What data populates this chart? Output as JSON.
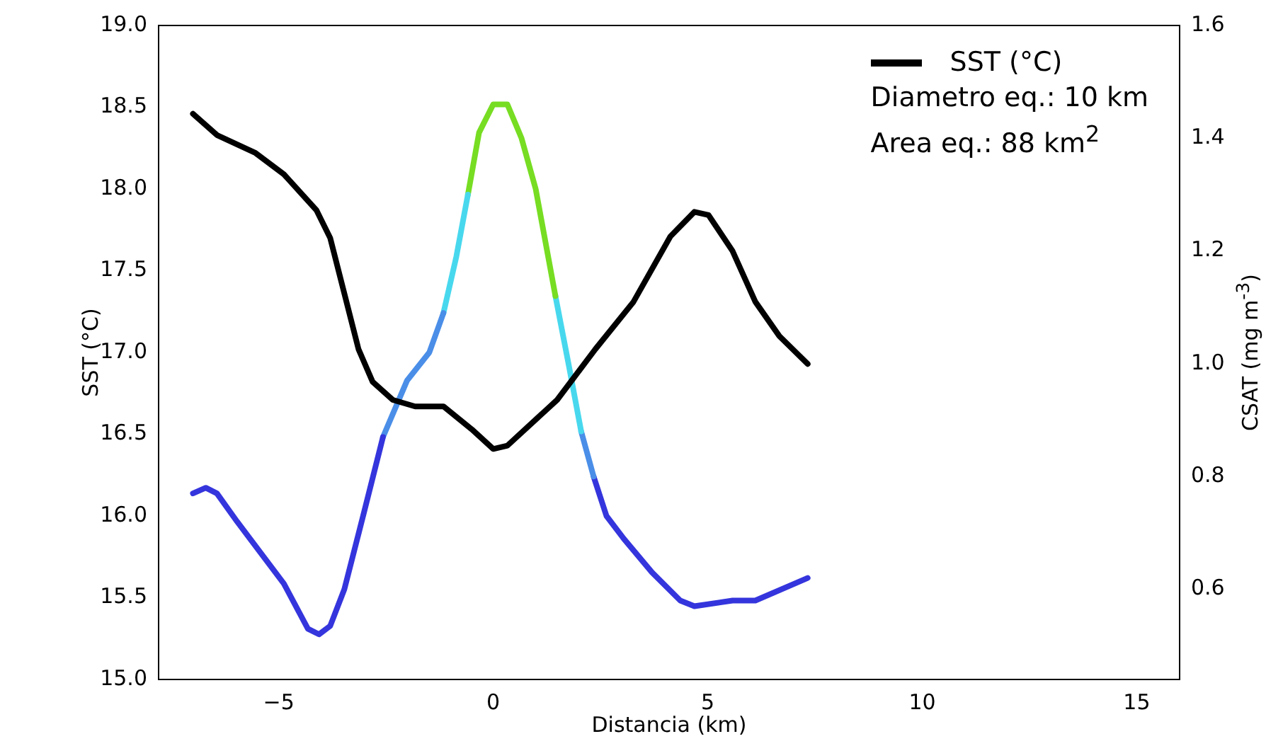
{
  "chart_data": {
    "type": "line",
    "xlabel": "Distancia (km)",
    "ylabel": "SST (°C)",
    "y2label": "CSAT (mg m$^{-3}$)",
    "annotations": [
      "Diametro eq.: 10 km",
      "Area eq.: 88 km$^{2}$"
    ],
    "xlim": [
      -7.8,
      16
    ],
    "xticks": [
      {
        "value": -5,
        "label": "−5"
      },
      0,
      5,
      10,
      15
    ],
    "ylim": [
      15,
      19
    ],
    "yticks": [
      {
        "value": 15,
        "label": "15.0"
      },
      15.5,
      {
        "value": 16,
        "label": "16.0"
      },
      16.5,
      {
        "value": 17,
        "label": "17.0"
      },
      17.5,
      {
        "value": 18,
        "label": "18.0"
      },
      18.5,
      {
        "value": 19,
        "label": "19.0"
      }
    ],
    "y2lim": [
      0.44,
      1.6
    ],
    "y2ticks": [
      0.6,
      0.8,
      {
        "value": 1,
        "label": "1.0"
      },
      1.2,
      1.4,
      1.6
    ],
    "grid": false,
    "legend": "top right",
    "marker": "none",
    "line_style": "solid",
    "series": [
      {
        "name": "SST (°C)",
        "color": "#000000",
        "x": [
          -7.0,
          -6.44,
          -5.54,
          -4.88,
          -4.12,
          -3.8,
          -3.47,
          -3.14,
          -2.81,
          -2.34,
          -1.82,
          -1.16,
          -0.5,
          0.0,
          0.33,
          1.49,
          2.38,
          3.27,
          4.13,
          4.69,
          5.02,
          5.58,
          6.11,
          6.67,
          7.33
        ],
        "values": [
          18.46,
          18.33,
          18.22,
          18.09,
          17.87,
          17.7,
          17.36,
          17.02,
          16.82,
          16.71,
          16.67,
          16.67,
          16.53,
          16.41,
          16.43,
          16.71,
          17.02,
          17.31,
          17.71,
          17.86,
          17.84,
          17.62,
          17.31,
          17.1,
          16.93
        ]
      },
      {
        "axis": "y2",
        "color": "#3535dd",
        "x": [
          -7.0,
          -6.7,
          -6.44,
          -5.97,
          -4.88,
          -4.32,
          -4.06,
          -3.8,
          -3.47,
          -3.0,
          -2.57
        ],
        "values": [
          0.77,
          0.78,
          0.77,
          0.72,
          0.61,
          0.53,
          0.52,
          0.535,
          0.6,
          0.74,
          0.87
        ]
      },
      {
        "axis": "y2",
        "color": "#4a8ee8",
        "x": [
          -2.57,
          -2.01,
          -1.49,
          -1.16
        ],
        "values": [
          0.87,
          0.97,
          1.02,
          1.09
        ]
      },
      {
        "axis": "y2",
        "color": "#48d8ee",
        "x": [
          -1.16,
          -0.86,
          -0.59
        ],
        "values": [
          1.09,
          1.19,
          1.3
        ]
      },
      {
        "axis": "y2",
        "color": "#77dd22",
        "x": [
          -0.59,
          -0.33,
          0.0,
          0.33,
          0.66,
          0.99,
          1.45
        ],
        "values": [
          1.3,
          1.41,
          1.46,
          1.46,
          1.4,
          1.31,
          1.12
        ]
      },
      {
        "axis": "y2",
        "color": "#48d8ee",
        "x": [
          1.45,
          1.78,
          2.05
        ],
        "values": [
          1.12,
          0.99,
          0.88
        ]
      },
      {
        "axis": "y2",
        "color": "#4a8ee8",
        "x": [
          2.05,
          2.34
        ],
        "values": [
          0.88,
          0.8
        ]
      },
      {
        "axis": "y2",
        "color": "#3535dd",
        "x": [
          2.34,
          2.64,
          3.04,
          3.7,
          4.36,
          4.69,
          5.58,
          6.11,
          7.33
        ],
        "values": [
          0.8,
          0.73,
          0.69,
          0.63,
          0.58,
          0.57,
          0.58,
          0.58,
          0.62
        ]
      }
    ]
  }
}
